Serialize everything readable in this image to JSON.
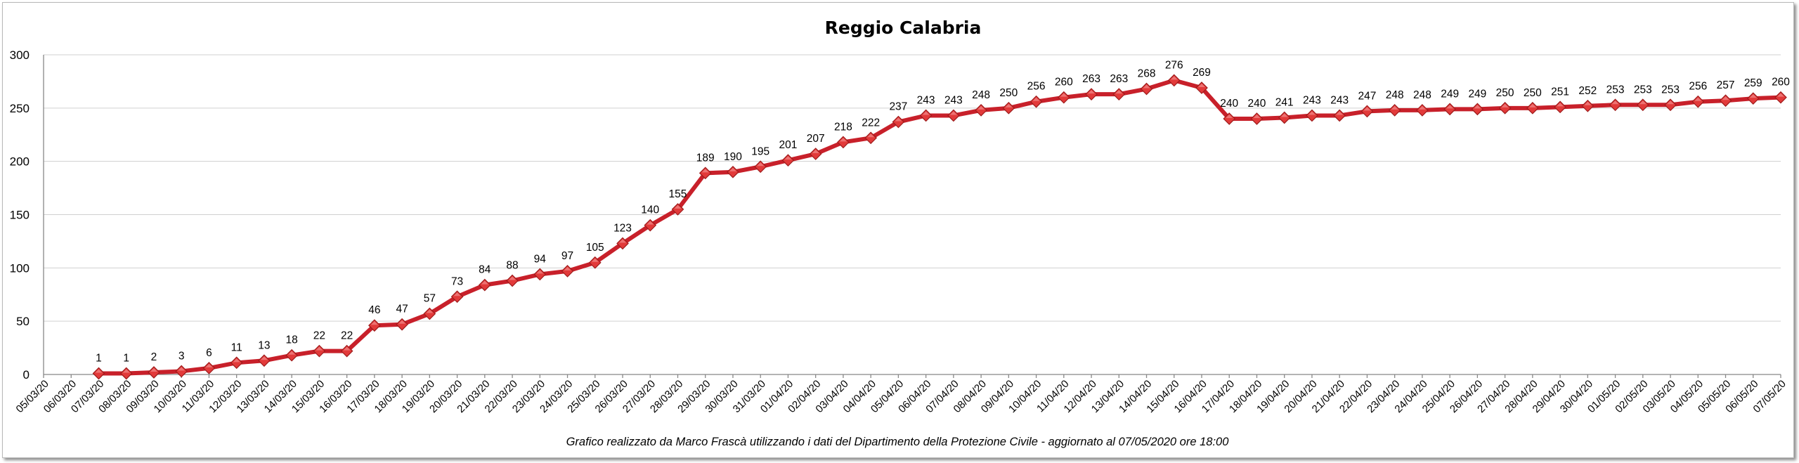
{
  "chart_data": {
    "type": "line",
    "title": "Reggio Calabria",
    "footer": "Grafico  realizzato da Marco Frascà  utilizzando i dati del Dipartimento  della Protezione Civile  - aggiornato al 07/05/2020 ore 18:00",
    "ylim": [
      0,
      300
    ],
    "yticks": [
      0,
      50,
      100,
      150,
      200,
      250,
      300
    ],
    "grid": true,
    "legend": "none",
    "colors": {
      "line": "#c8202a",
      "marker": "#e23a3a"
    },
    "categories": [
      "05/03/20",
      "06/03/20",
      "07/03/20",
      "08/03/20",
      "09/03/20",
      "10/03/20",
      "11/03/20",
      "12/03/20",
      "13/03/20",
      "14/03/20",
      "15/03/20",
      "16/03/20",
      "17/03/20",
      "18/03/20",
      "19/03/20",
      "20/03/20",
      "21/03/20",
      "22/03/20",
      "23/03/20",
      "24/03/20",
      "25/03/20",
      "26/03/20",
      "27/03/20",
      "28/03/20",
      "29/03/20",
      "30/03/20",
      "31/03/20",
      "01/04/20",
      "02/04/20",
      "03/04/20",
      "04/04/20",
      "05/04/20",
      "06/04/20",
      "07/04/20",
      "08/04/20",
      "09/04/20",
      "10/04/20",
      "11/04/20",
      "12/04/20",
      "13/04/20",
      "14/04/20",
      "15/04/20",
      "16/04/20",
      "17/04/20",
      "18/04/20",
      "19/04/20",
      "20/04/20",
      "21/04/20",
      "22/04/20",
      "23/04/20",
      "24/04/20",
      "25/04/20",
      "26/04/20",
      "27/04/20",
      "28/04/20",
      "29/04/20",
      "30/04/20",
      "01/05/20",
      "02/05/20",
      "03/05/20",
      "04/05/20",
      "05/05/20",
      "06/05/20",
      "07/05/20"
    ],
    "series": [
      {
        "values": [
          null,
          null,
          1,
          1,
          2,
          3,
          6,
          11,
          13,
          18,
          22,
          22,
          46,
          47,
          57,
          73,
          84,
          88,
          94,
          97,
          105,
          123,
          140,
          155,
          189,
          190,
          195,
          201,
          207,
          218,
          222,
          237,
          243,
          243,
          248,
          250,
          256,
          260,
          263,
          263,
          268,
          276,
          269,
          240,
          240,
          241,
          243,
          243,
          247,
          248,
          248,
          249,
          249,
          250,
          250,
          251,
          252,
          253,
          253,
          253,
          256,
          257,
          259,
          260
        ]
      }
    ]
  }
}
